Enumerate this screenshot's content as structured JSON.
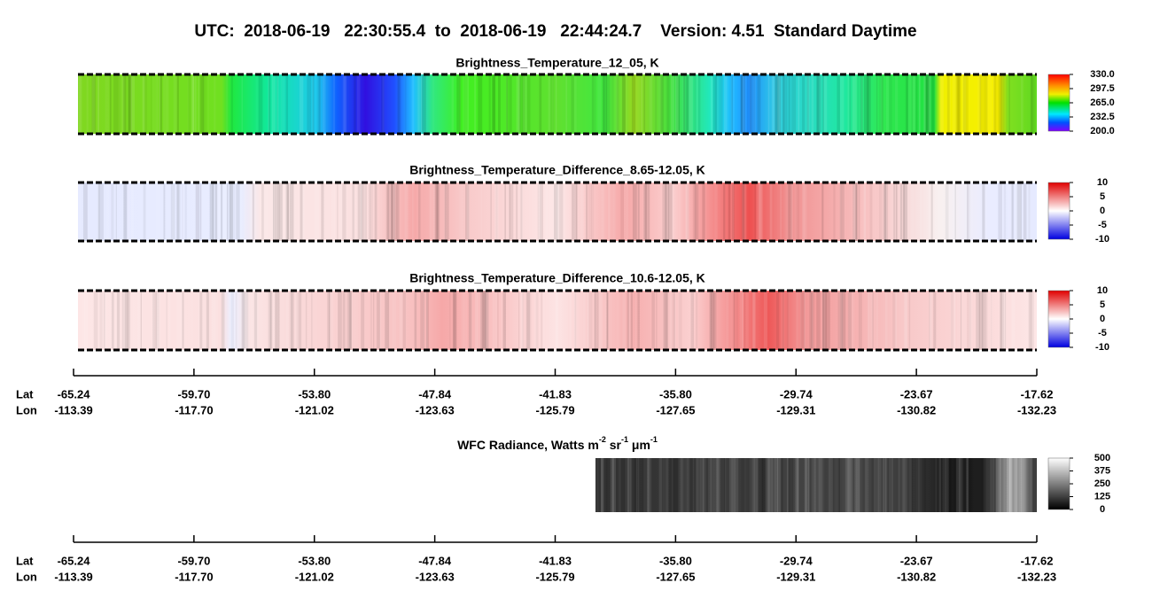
{
  "header": {
    "title": "UTC:  2018-06-19   22:30:55.4  to  2018-06-19   22:44:24.7    Version: 4.51  Standard Daytime"
  },
  "panels": [
    {
      "title": "Brightness_Temperature_12_05, K",
      "colorbar": [
        "330.0",
        "297.5",
        "265.0",
        "232.5",
        "200.0"
      ]
    },
    {
      "title": "Brightness_Temperature_Difference_8.65-12.05, K",
      "colorbar": [
        "10",
        "5",
        "0",
        "-5",
        "-10"
      ]
    },
    {
      "title": "Brightness_Temperature_Difference_10.6-12.05, K",
      "colorbar": [
        "10",
        "5",
        "0",
        "-5",
        "-10"
      ]
    },
    {
      "title_parts": [
        "WFC Radiance, Watts m",
        "-2",
        " sr",
        "-1",
        " μm",
        "-1"
      ],
      "colorbar": [
        "500",
        "375",
        "250",
        "125",
        "0"
      ]
    }
  ],
  "axes": [
    {
      "lat_label": "Lat",
      "lon_label": "Lon",
      "lat": [
        "-65.24",
        "-59.70",
        "-53.80",
        "-47.84",
        "-41.83",
        "-35.80",
        "-29.74",
        "-23.67",
        "-17.62"
      ],
      "lon": [
        "-113.39",
        "-117.70",
        "-121.02",
        "-123.63",
        "-125.79",
        "-127.65",
        "-129.31",
        "-130.82",
        "-132.23"
      ]
    },
    {
      "lat_label": "Lat",
      "lon_label": "Lon",
      "lat": [
        "-65.24",
        "-59.70",
        "-53.80",
        "-47.84",
        "-41.83",
        "-35.80",
        "-29.74",
        "-23.67",
        "-17.62"
      ],
      "lon": [
        "-113.39",
        "-117.70",
        "-121.02",
        "-123.63",
        "-125.79",
        "-127.65",
        "-129.31",
        "-130.82",
        "-132.23"
      ]
    }
  ]
}
